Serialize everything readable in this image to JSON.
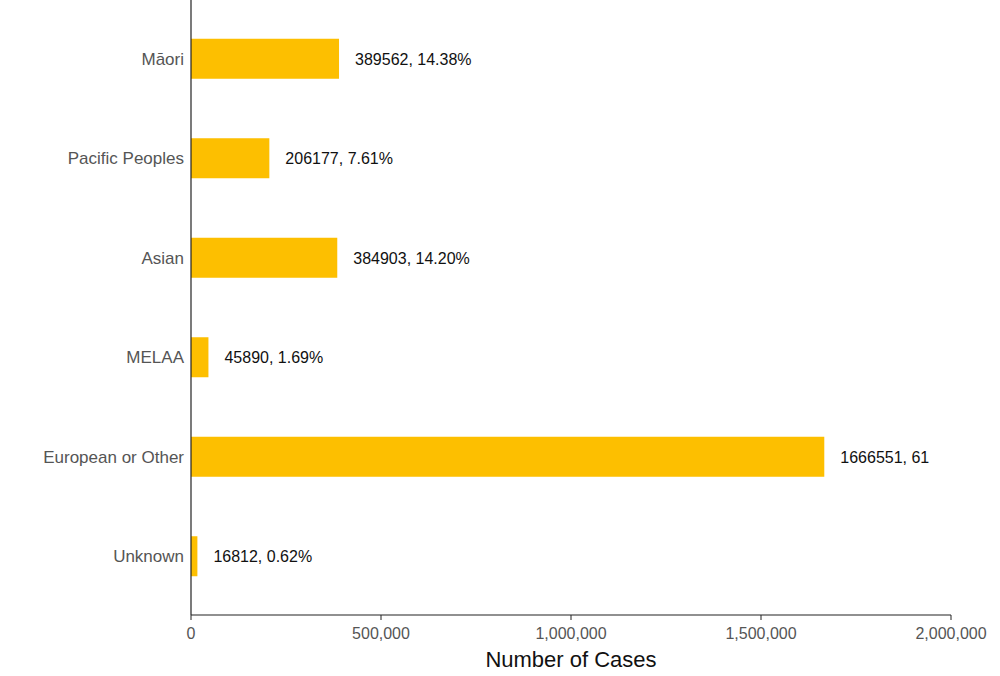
{
  "chart_data": {
    "type": "bar",
    "orientation": "horizontal",
    "xlabel": "Number of Cases",
    "categories": [
      "Māori",
      "Pacific Peoples",
      "Asian",
      "MELAA",
      "European or Other",
      "Unknown"
    ],
    "values": [
      389562,
      206177,
      384903,
      45890,
      1666551,
      16812
    ],
    "value_labels": [
      "389562, 14.38%",
      "206177, 7.61%",
      "384903, 14.20%",
      "45890, 1.69%",
      "1666551, 61",
      "16812, 0.62%"
    ],
    "data_labels": true,
    "color": "#FDBF00",
    "xlim": [
      0,
      2000000
    ],
    "xticks": [
      0,
      {
        "value": 500000,
        "label": "500,000"
      },
      {
        "value": 1000000,
        "label": "1,000,000"
      },
      {
        "value": 1500000,
        "label": "1,500,000"
      },
      {
        "value": 2000000,
        "label": "2,000,000"
      }
    ],
    "grid": false
  }
}
